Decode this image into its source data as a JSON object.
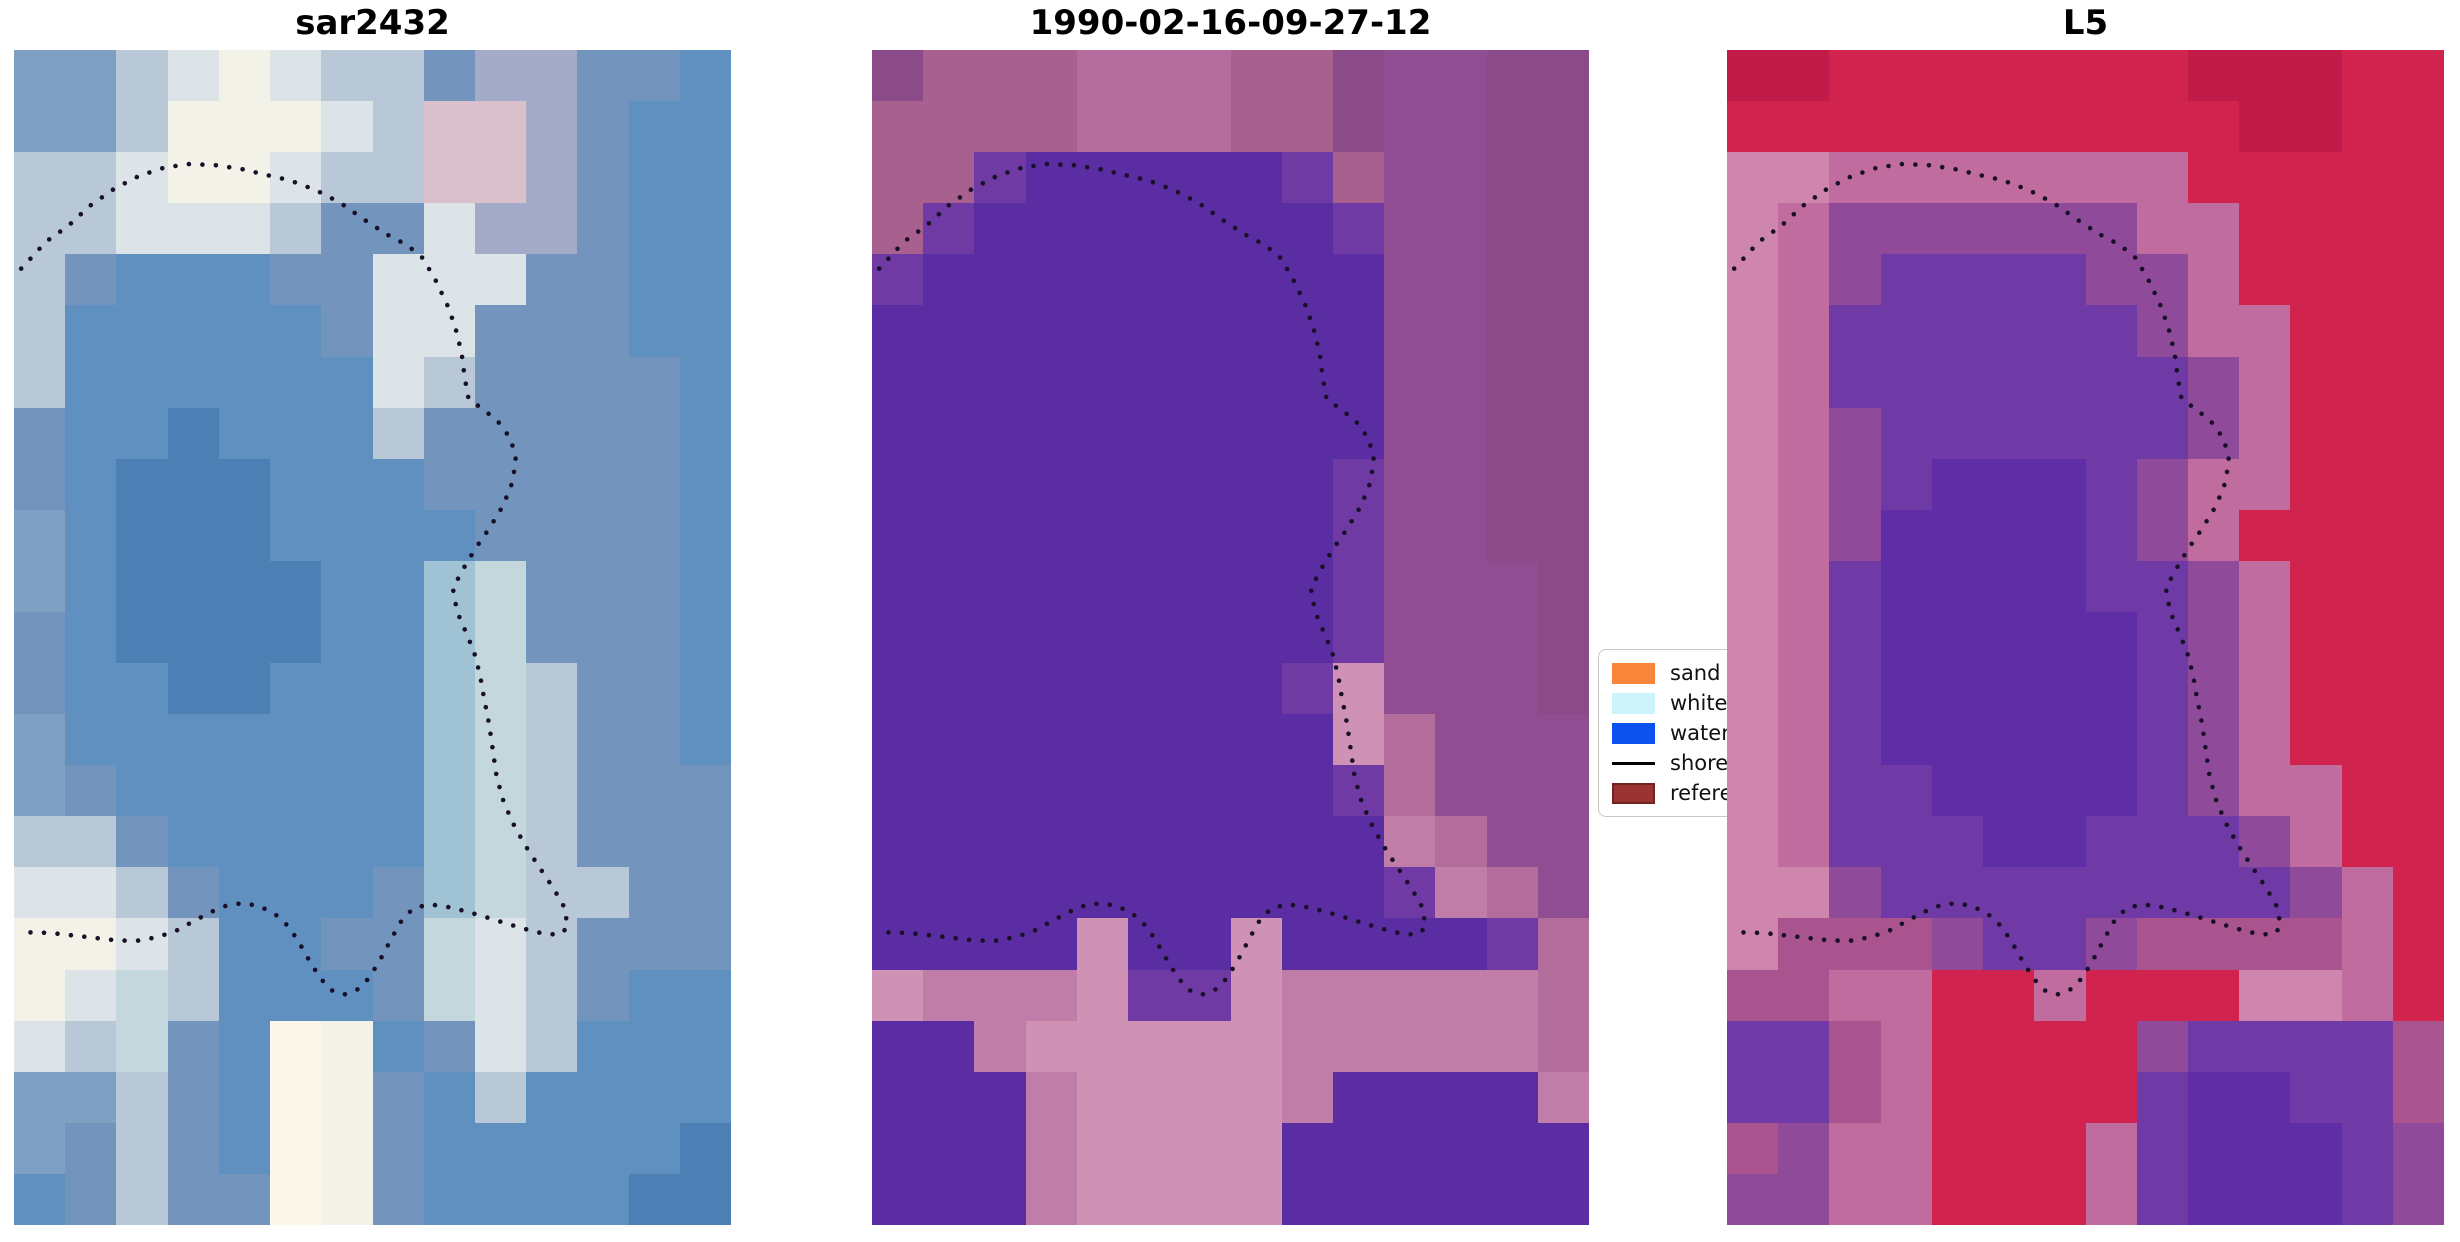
{
  "chart_data": {
    "type": "heatmap",
    "description": "Three co-registered coastal satellite image panels with a dotted shoreline contour overlay and a classification legend partially hidden behind the third panel.",
    "panels": [
      {
        "title": "sar2432",
        "palette": {
          "a": "#7fa0c2",
          "b": "#6090c0",
          "c": "#4c7fb3",
          "d": "#b8c8d6",
          "e": "#dde4e8",
          "f": "#f3f2e9",
          "g": "#a3abc8",
          "h": "#7294bd",
          "i": "#c4d7dd",
          "k": "#9fc3d4",
          "p": "#d9c0cb",
          "w": "#fbf8ea"
        },
        "rows": [
          "aadefeddhgghhb",
          "aadfffedppghbb",
          "ddeffeddppghbb",
          "ddeeedhhegghbb",
          "dhbbbhheeehhbb",
          "dbbbbbheehhhbb",
          "dbbbbbbedhhhhb",
          "hbbcbbbdhhhhhb",
          "hbcccbbbhhhhhb",
          "abcccbbbbhhhhb",
          "abccccbbkihhhb",
          "hbccccbbkihhhb",
          "hbbccbbbkidhhb",
          "abbbbbbbkidhhb",
          "ahbbbbbbkidhhh",
          "ddhbbbbbkidhhh",
          "eedhbbbhkiddhh",
          "ffedbbhhiedhhh",
          "feidbbbhiedhbb",
          "edihbwfbhedbbb",
          "aadhbwfhbdbbbb",
          "ahdhbwfhbbbbbc",
          "bhdhhwfhbbbbcc"
        ]
      },
      {
        "title": "1990-02-16-09-27-12",
        "palette": {
          "P": "#5b2da2",
          "q": "#6f3aa4",
          "m": "#a8608f",
          "n": "#8a4b88",
          "o": "#8f4e91",
          "r": "#c07da7",
          "s": "#cf92b5",
          "t": "#b36d9c"
        },
        "rows": [
          "nmmmtttmmnoonn",
          "mmmmtttmmnoonn",
          "mmqPPPPPqmoonn",
          "mqPPPPPPPqoonn",
          "qPPPPPPPPPoonn",
          "PPPPPPPPPPoonn",
          "PPPPPPPPPPoonn",
          "PPPPPPPPPPoonn",
          "PPPPPPPPPqoonn",
          "PPPPPPPPPqoonn",
          "PPPPPPPPPqooon",
          "PPPPPPPPPqooon",
          "PPPPPPPPqsooon",
          "PPPPPPPPPstooo",
          "PPPPPPPPPqtooo",
          "PPPPPPPPPPrtoo",
          "PPPPPPPPPPqrto",
          "PPPPsPPsPPPPqt",
          "srrrsqqsrrrrrt",
          "PPrsssssrrrrrt",
          "PPPrssssrPPPPr",
          "PPPrssssPPPPPP",
          "PPPrssssPPPPPP"
        ]
      },
      {
        "title": "L5",
        "palette": {
          "R": "#d0244f",
          "S": "#c11c49",
          "U": "#5f2da6",
          "V": "#6f3aa6",
          "W": "#8f4a9a",
          "X": "#a9548e",
          "Y": "#c06c9e",
          "Z": "#cf86ac"
        },
        "rows": [
          "SSRRRRRRRSSSRR",
          "RRRRRRRRRRSSRR",
          "ZZYYYYYYYRRRRR",
          "ZYWWWWWWYYRRRR",
          "ZYWVVVVWWYRRRR",
          "ZYVVVVVVWYYRRR",
          "ZYVVVVVVVWYRRR",
          "ZYWVVVVVVWYRRR",
          "ZYWVUUUVWYYRRR",
          "ZYWUUUUVWYRRRR",
          "ZYVUUUUVVWYRRR",
          "ZYVUUUUUVWYRRR",
          "ZYVUUUUUVWYRRR",
          "ZYVUUUUUVWYRRR",
          "ZYVVUUUUVWYYRR",
          "ZYVVVUUVVVWYRR",
          "ZZWVVVVVVVVWYR",
          "ZXXXWVVWXXXXYR",
          "XXYYRRYRRRZZYR",
          "VVXYRRRRWVVVVX",
          "VVXYRRRRVUUVVX",
          "XWYYRRRYVUUUVW",
          "WWYYRRRYVUUUVW"
        ]
      }
    ],
    "legend": {
      "position": "center-right, between second and third panel, clipped by third panel",
      "entries": [
        {
          "label": "sand",
          "swatch": "patch",
          "color": "#f8863a"
        },
        {
          "label": "whitewater",
          "swatch": "patch",
          "color": "#cdf4fb"
        },
        {
          "label": "water",
          "swatch": "patch",
          "color": "#0b52ee"
        },
        {
          "label": "shoreline",
          "swatch": "line",
          "color": "#000000"
        },
        {
          "label": "reference",
          "swatch": "patch",
          "color": "#993432",
          "border_color": "#6f2423"
        }
      ]
    },
    "shoreline_overlay": {
      "style": "dotted",
      "color": "#191028",
      "dot_radius_px": 2.3,
      "dot_spacing_px": 13.5,
      "points_normalized": [
        [
          0.01,
          0.186
        ],
        [
          0.045,
          0.163
        ],
        [
          0.075,
          0.15
        ],
        [
          0.105,
          0.133
        ],
        [
          0.14,
          0.118
        ],
        [
          0.175,
          0.107
        ],
        [
          0.21,
          0.1
        ],
        [
          0.245,
          0.097
        ],
        [
          0.28,
          0.098
        ],
        [
          0.315,
          0.101
        ],
        [
          0.35,
          0.106
        ],
        [
          0.385,
          0.111
        ],
        [
          0.42,
          0.119
        ],
        [
          0.455,
          0.13
        ],
        [
          0.49,
          0.145
        ],
        [
          0.52,
          0.157
        ],
        [
          0.548,
          0.166
        ],
        [
          0.57,
          0.177
        ],
        [
          0.588,
          0.196
        ],
        [
          0.603,
          0.215
        ],
        [
          0.615,
          0.235
        ],
        [
          0.624,
          0.257
        ],
        [
          0.629,
          0.28
        ],
        [
          0.634,
          0.297
        ],
        [
          0.655,
          0.306
        ],
        [
          0.676,
          0.317
        ],
        [
          0.693,
          0.331
        ],
        [
          0.7,
          0.349
        ],
        [
          0.695,
          0.368
        ],
        [
          0.682,
          0.388
        ],
        [
          0.663,
          0.407
        ],
        [
          0.645,
          0.423
        ],
        [
          0.63,
          0.438
        ],
        [
          0.612,
          0.458
        ],
        [
          0.618,
          0.478
        ],
        [
          0.63,
          0.495
        ],
        [
          0.642,
          0.513
        ],
        [
          0.65,
          0.532
        ],
        [
          0.656,
          0.553
        ],
        [
          0.663,
          0.575
        ],
        [
          0.668,
          0.597
        ],
        [
          0.673,
          0.618
        ],
        [
          0.682,
          0.638
        ],
        [
          0.695,
          0.657
        ],
        [
          0.712,
          0.676
        ],
        [
          0.732,
          0.695
        ],
        [
          0.752,
          0.713
        ],
        [
          0.768,
          0.73
        ],
        [
          0.772,
          0.747
        ],
        [
          0.76,
          0.753
        ],
        [
          0.738,
          0.752
        ],
        [
          0.712,
          0.748
        ],
        [
          0.685,
          0.743
        ],
        [
          0.658,
          0.738
        ],
        [
          0.63,
          0.733
        ],
        [
          0.603,
          0.729
        ],
        [
          0.578,
          0.727
        ],
        [
          0.556,
          0.731
        ],
        [
          0.538,
          0.743
        ],
        [
          0.524,
          0.759
        ],
        [
          0.51,
          0.775
        ],
        [
          0.495,
          0.79
        ],
        [
          0.478,
          0.8
        ],
        [
          0.46,
          0.804
        ],
        [
          0.442,
          0.8
        ],
        [
          0.426,
          0.789
        ],
        [
          0.412,
          0.775
        ],
        [
          0.398,
          0.76
        ],
        [
          0.383,
          0.746
        ],
        [
          0.365,
          0.736
        ],
        [
          0.344,
          0.729
        ],
        [
          0.321,
          0.726
        ],
        [
          0.297,
          0.728
        ],
        [
          0.273,
          0.734
        ],
        [
          0.249,
          0.742
        ],
        [
          0.225,
          0.75
        ],
        [
          0.2,
          0.755
        ],
        [
          0.173,
          0.758
        ],
        [
          0.145,
          0.758
        ],
        [
          0.117,
          0.756
        ],
        [
          0.089,
          0.754
        ],
        [
          0.06,
          0.752
        ],
        [
          0.032,
          0.751
        ],
        [
          0.008,
          0.751
        ]
      ]
    }
  }
}
